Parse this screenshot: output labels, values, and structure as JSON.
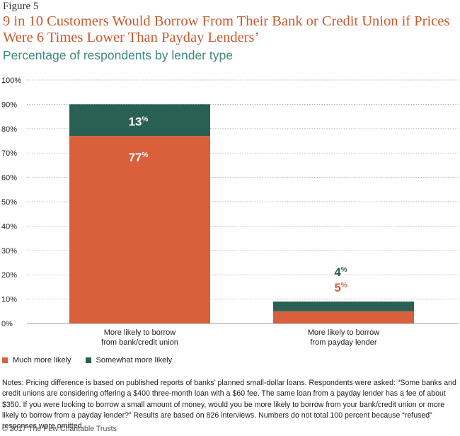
{
  "header": {
    "figure_label": "Figure 5",
    "title": "9 in 10 Customers Would Borrow From Their Bank or Credit Union if Prices Were 6 Times Lower Than Payday Lenders’",
    "subtitle": "Percentage of respondents by lender type"
  },
  "colors": {
    "much": "#d9603b",
    "somewhat": "#2a5f54",
    "grid": "#999999",
    "axis_text": "#222222"
  },
  "chart_data": {
    "type": "bar",
    "stacked": true,
    "title": "9 in 10 Customers Would Borrow From Their Bank or Credit Union if Prices Were 6 Times Lower Than Payday Lenders’",
    "subtitle": "Percentage of respondents by lender type",
    "categories": [
      [
        "More likely to borrow",
        "from bank/credit union"
      ],
      [
        "More likely to borrow",
        "from payday lender"
      ]
    ],
    "series": [
      {
        "name": "Much more likely",
        "values": [
          77,
          5
        ],
        "labels": [
          "77",
          "5"
        ],
        "color": "#d9603b"
      },
      {
        "name": "Somewhat more likely",
        "values": [
          13,
          4
        ],
        "labels": [
          "13",
          "4"
        ],
        "color": "#2a5f54"
      }
    ],
    "label_suffix": "%",
    "yticks": [
      "0%",
      "10%",
      "20%",
      "30%",
      "40%",
      "50%",
      "60%",
      "70%",
      "80%",
      "90%",
      "100%"
    ],
    "ylim": [
      0,
      100
    ],
    "grid": true,
    "legend_position": "bottom-left"
  },
  "legend": [
    {
      "label": "Much more likely",
      "color": "#d9603b"
    },
    {
      "label": "Somewhat more likely",
      "color": "#2a5f54"
    }
  ],
  "notes": "Notes: Pricing difference is based on published reports of banks’ planned small-dollar loans. Respondents were asked: “Some banks and credit unions are considering offering a $400 three-month loan with a $60 fee. The same loan from a payday lender has a fee of about $350. If you were looking to borrow a small amount of money, would you be more likely to borrow from your bank/credit union or more likely to borrow from a payday lender?” Results are based on 826 interviews. Numbers do not total 100 percent because “refused” responses were omitted.",
  "copyright": "© 2017 The Pew Charitable Trusts"
}
